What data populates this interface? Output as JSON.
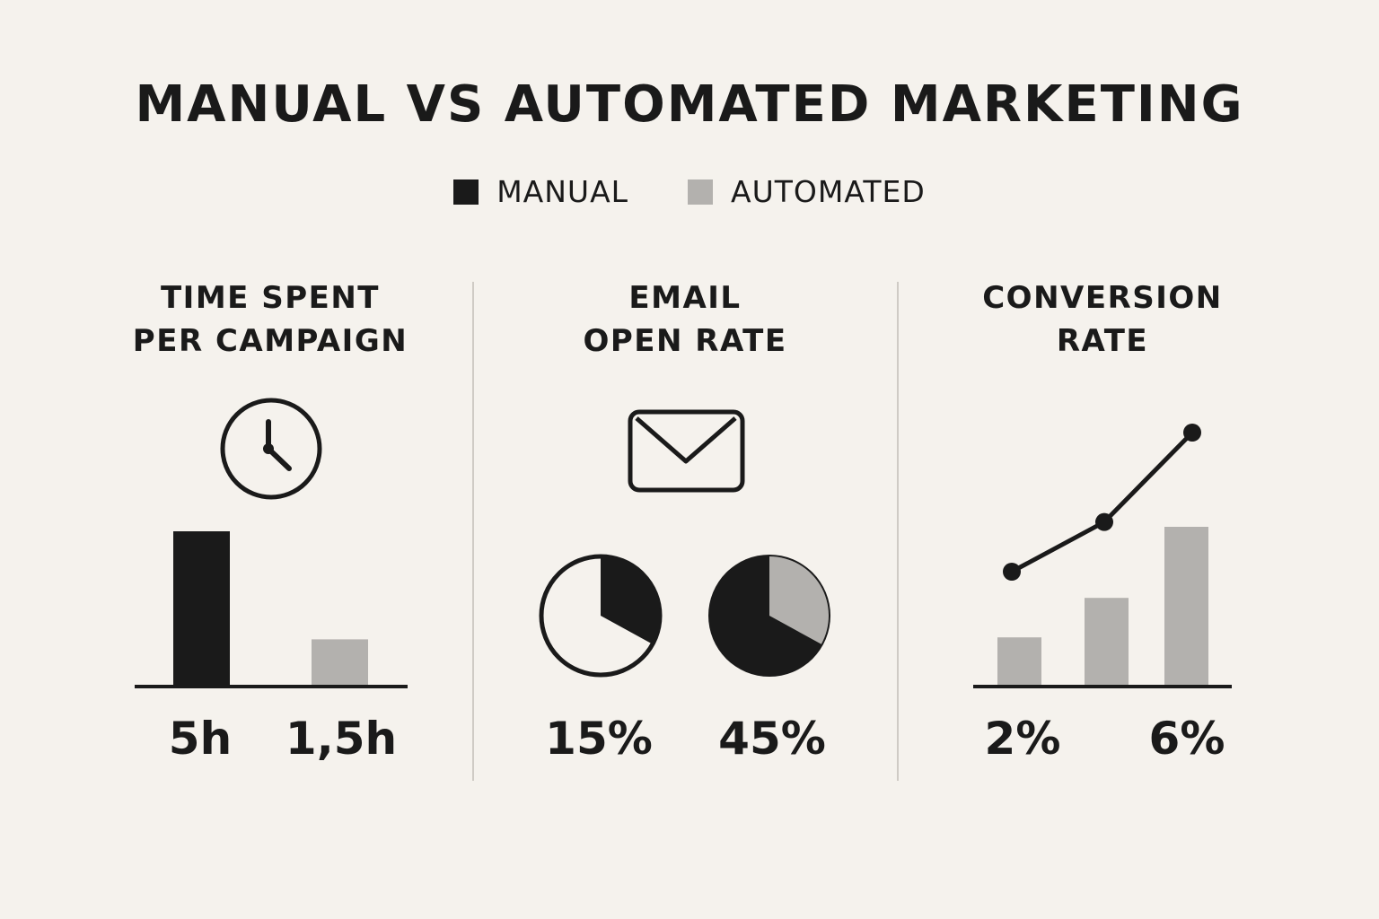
{
  "title": "MANUAL VS AUTOMATED MARKETING",
  "legend": {
    "manual": "MANUAL",
    "automated": "AUTOMATED",
    "manual_color": "#1a1a1a",
    "automated_color": "#b3b1ae"
  },
  "panels": [
    {
      "title_line1": "TIME SPENT",
      "title_line2": "PER CAMPAIGN",
      "icon": "clock-icon",
      "manual_label": "5h",
      "automated_label": "1,5h"
    },
    {
      "title_line1": "EMAIL",
      "title_line2": "OPEN RATE",
      "icon": "envelope-icon",
      "manual_label": "15%",
      "automated_label": "45%"
    },
    {
      "title_line1": "CONVERSION",
      "title_line2": "RATE",
      "icon": "trend-line-icon",
      "manual_label": "2%",
      "automated_label": "6%"
    }
  ],
  "chart_data": [
    {
      "type": "bar",
      "title": "TIME SPENT PER CAMPAIGN",
      "categories": [
        "MANUAL",
        "AUTOMATED"
      ],
      "values": [
        5,
        1.5
      ],
      "units": "h",
      "data_labels": [
        "5h",
        "1,5h"
      ]
    },
    {
      "type": "pie",
      "title": "EMAIL OPEN RATE",
      "categories": [
        "MANUAL",
        "AUTOMATED"
      ],
      "values": [
        15,
        45
      ],
      "units": "%",
      "data_labels": [
        "15%",
        "45%"
      ]
    },
    {
      "type": "bar",
      "title": "CONVERSION RATE",
      "bar_values_relative": [
        0.3,
        0.55,
        1.0
      ],
      "trend_line": [
        0.3,
        0.55,
        1.0
      ],
      "data_labels": [
        "2%",
        "6%"
      ]
    }
  ]
}
